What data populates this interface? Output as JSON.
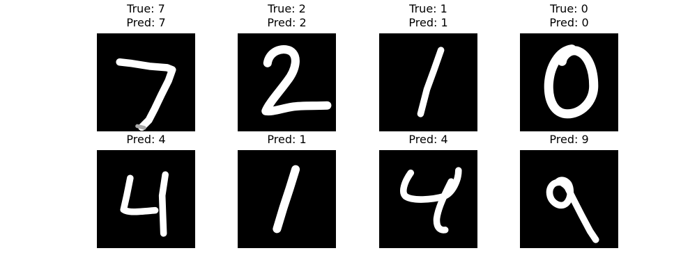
{
  "figure": {
    "background": "#ffffff",
    "image_background": "#000000",
    "stroke_color": "#ffffff",
    "samples": [
      {
        "true_label": "True: 7",
        "pred_label": "Pred: 7",
        "digit": "7"
      },
      {
        "true_label": "True: 2",
        "pred_label": "Pred: 2",
        "digit": "2"
      },
      {
        "true_label": "True: 1",
        "pred_label": "Pred: 1",
        "digit": "1"
      },
      {
        "true_label": "True: 0",
        "pred_label": "Pred: 0",
        "digit": "0"
      },
      {
        "true_label": "",
        "pred_label": "Pred: 4",
        "digit": "4"
      },
      {
        "true_label": "",
        "pred_label": "Pred: 1",
        "digit": "1"
      },
      {
        "true_label": "",
        "pred_label": "Pred: 4",
        "digit": "4"
      },
      {
        "true_label": "",
        "pred_label": "Pred: 9",
        "digit": "9"
      }
    ]
  }
}
